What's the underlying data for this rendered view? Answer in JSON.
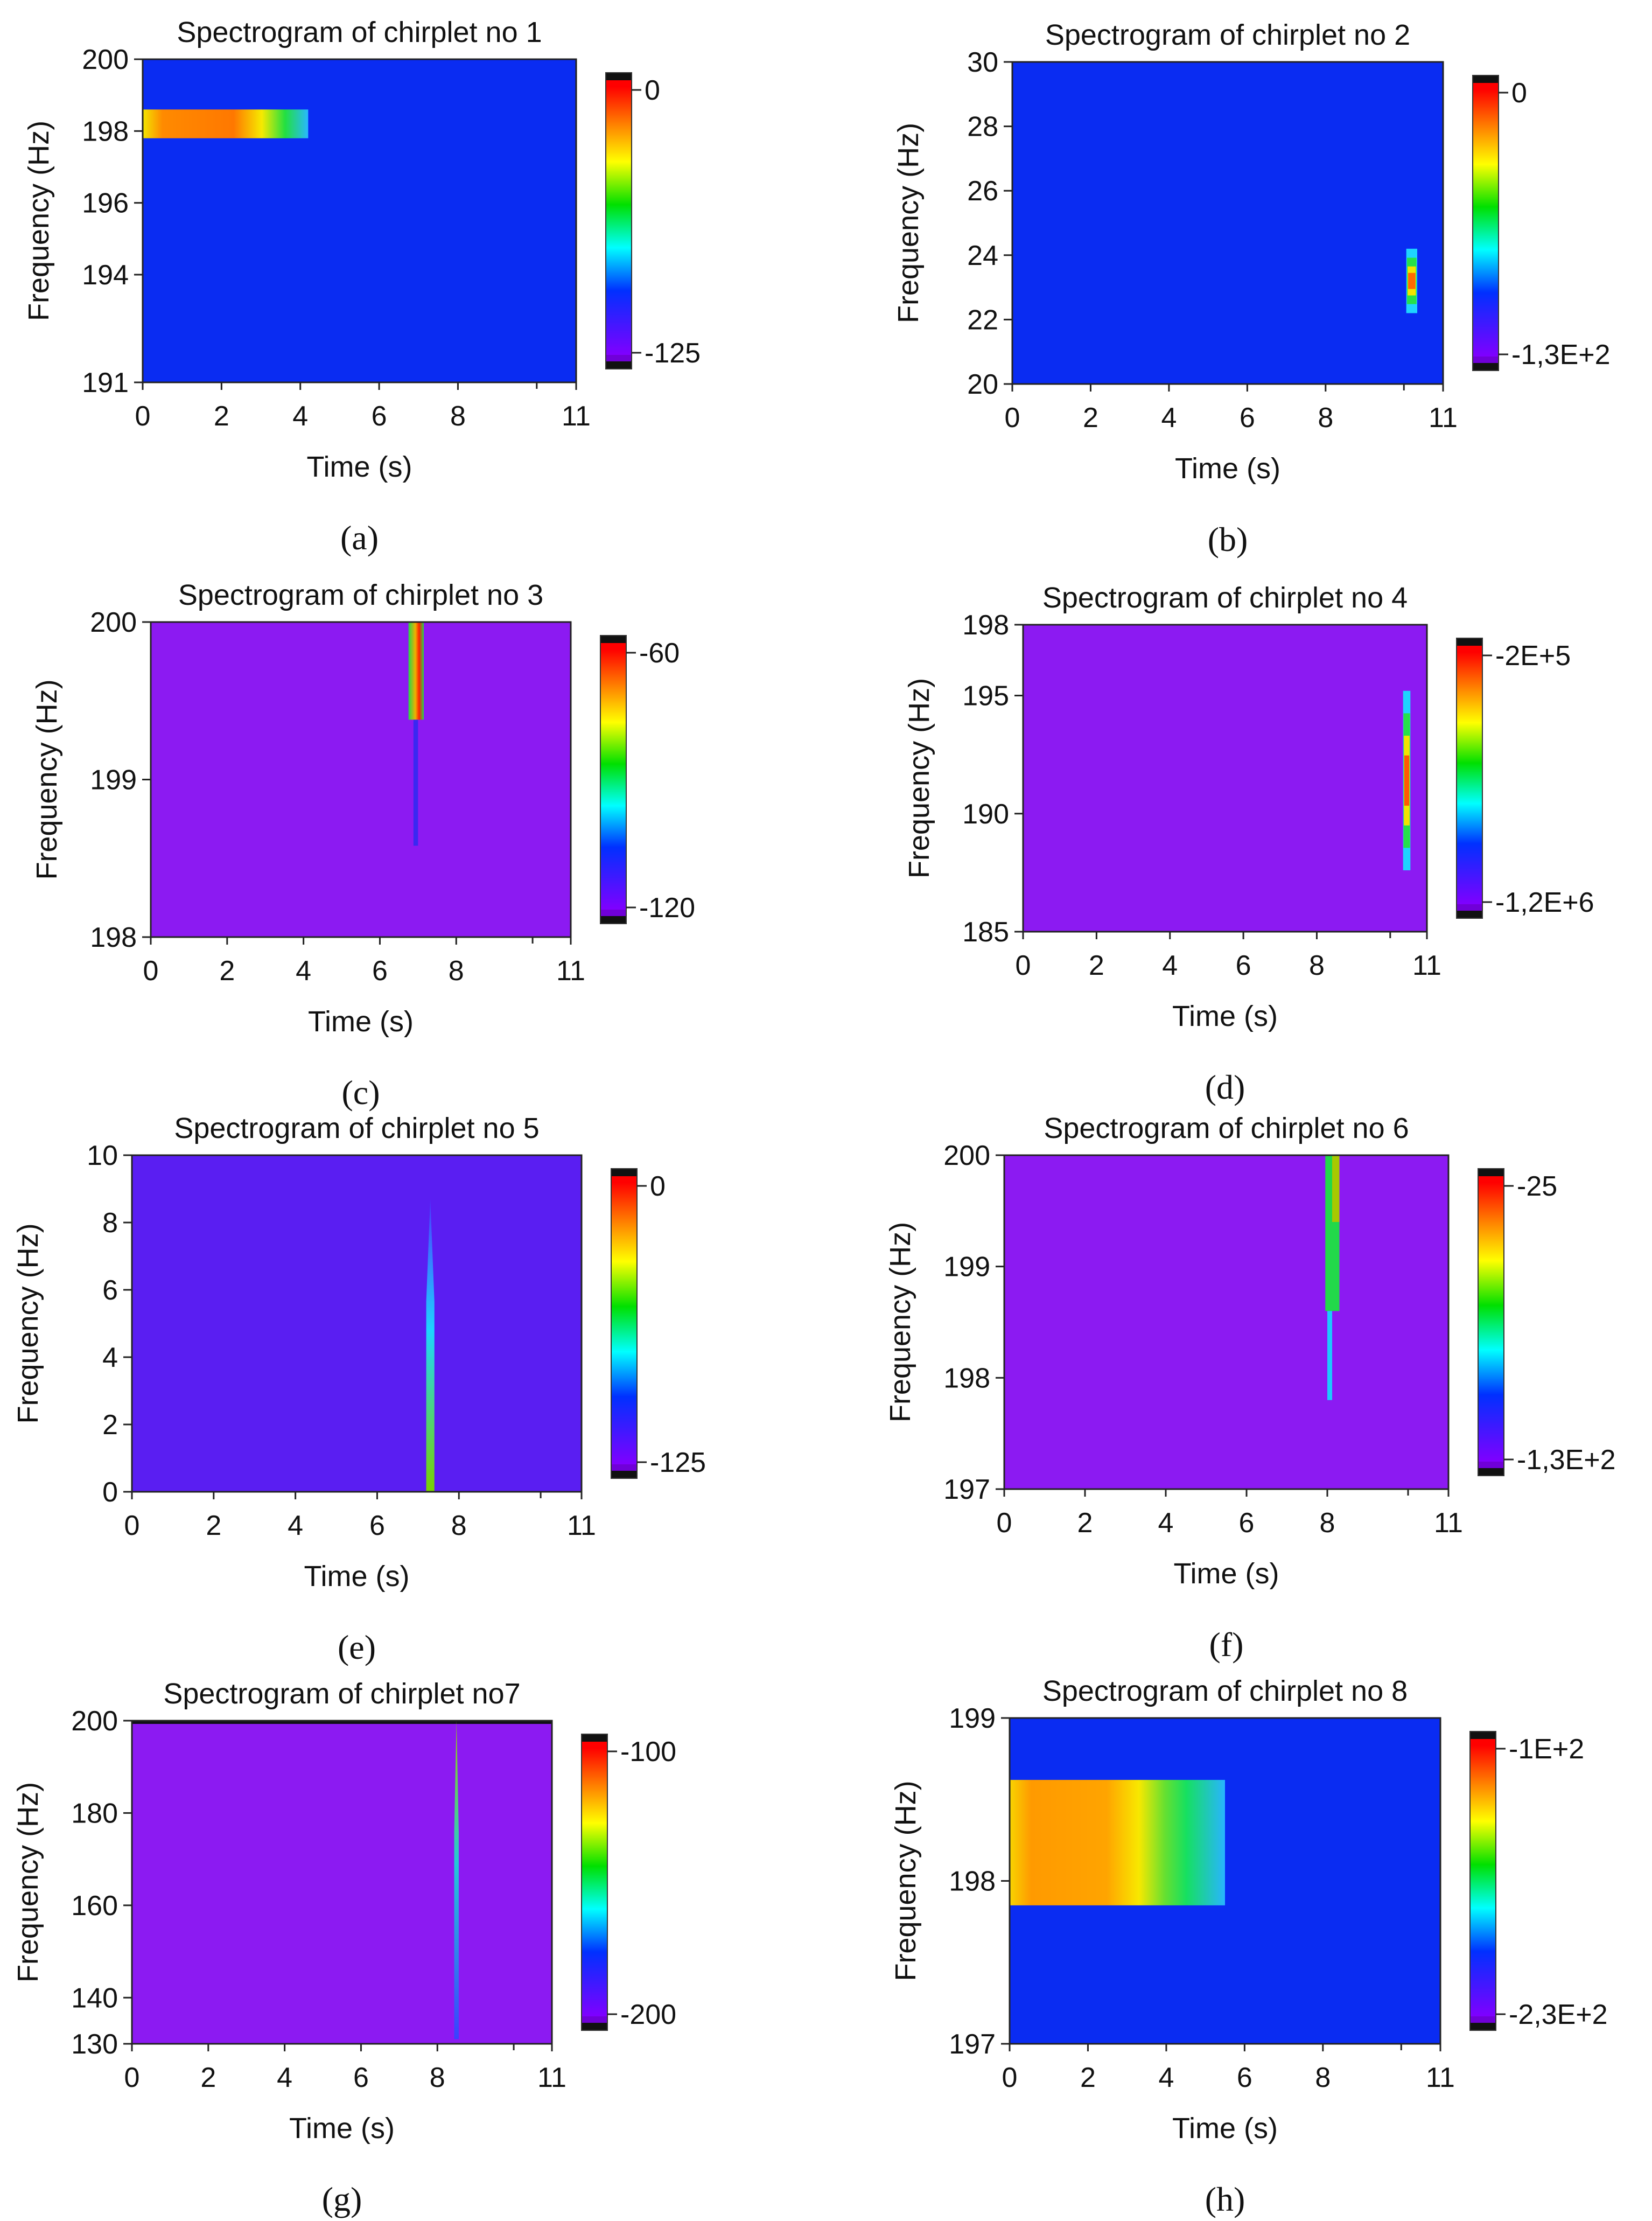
{
  "figure": {
    "background": "#ffffff"
  },
  "chart_data": [
    {
      "panel": "a",
      "panel_label": "(a)",
      "type": "heatmap",
      "title": "Spectrogram of chirplet no 1",
      "xlabel": "Time (s)",
      "ylabel": "Frequency (Hz)",
      "xlim": [
        0,
        11
      ],
      "ylim": [
        191,
        200
      ],
      "xticks": [
        "0",
        "2",
        "4",
        "6",
        "8",
        "11"
      ],
      "xtick_values": [
        0,
        2,
        4,
        6,
        8,
        11
      ],
      "yticks": [
        "191",
        "194",
        "196",
        "198",
        "200"
      ],
      "ytick_values": [
        191,
        194,
        196,
        198,
        200
      ],
      "background_color": "#0a2cf2",
      "colorbar": {
        "max_label": "0",
        "min_label": "-125"
      },
      "features": [
        {
          "shape": "band",
          "t0": 0,
          "t1": 4.2,
          "f0": 197.8,
          "f1": 198.6,
          "stops": [
            [
              0,
              "#f2e600"
            ],
            [
              0.12,
              "#ff8a00"
            ],
            [
              0.55,
              "#ff7800"
            ],
            [
              0.72,
              "#f6ea00"
            ],
            [
              0.86,
              "#23e040"
            ],
            [
              1,
              "#28b8ff"
            ]
          ]
        }
      ]
    },
    {
      "panel": "b",
      "panel_label": "(b)",
      "type": "heatmap",
      "title": "Spectrogram of chirplet no 2",
      "xlabel": "Time (s)",
      "ylabel": "Frequency (Hz)",
      "xlim": [
        0,
        11
      ],
      "ylim": [
        20,
        30
      ],
      "xticks": [
        "0",
        "2",
        "4",
        "6",
        "8",
        "11"
      ],
      "xtick_values": [
        0,
        2,
        4,
        6,
        8,
        11
      ],
      "yticks": [
        "20",
        "22",
        "24",
        "26",
        "28",
        "30"
      ],
      "ytick_values": [
        20,
        22,
        24,
        26,
        28,
        30
      ],
      "background_color": "#0a2cf2",
      "colorbar": {
        "max_label": "0",
        "min_label": "-1,3E+2"
      },
      "features": [
        {
          "shape": "blob",
          "t": 10.2,
          "f": 23.2,
          "dt": 0.28,
          "df": 2.0,
          "layers": [
            [
              1,
              "#1ed4ff"
            ],
            [
              0.72,
              "#27e04a"
            ],
            [
              0.45,
              "#f2e400"
            ],
            [
              0.25,
              "#ff6a00"
            ]
          ]
        }
      ]
    },
    {
      "panel": "c",
      "panel_label": "(c)",
      "type": "heatmap",
      "title": "Spectrogram of chirplet no 3",
      "xlabel": "Time (s)",
      "ylabel": "Frequency (Hz)",
      "xlim": [
        0,
        11
      ],
      "ylim": [
        198,
        200
      ],
      "xticks": [
        "0",
        "2",
        "4",
        "6",
        "8",
        "11"
      ],
      "xtick_values": [
        0,
        2,
        4,
        6,
        8,
        11
      ],
      "yticks": [
        "198",
        "199",
        "200"
      ],
      "ytick_values": [
        198,
        199,
        200
      ],
      "background_color": "#8c1af2",
      "colorbar": {
        "max_label": "-60",
        "min_label": "-120"
      },
      "features": [
        {
          "shape": "band",
          "t0": 6.75,
          "t1": 7.15,
          "f0": 199.38,
          "f1": 200,
          "stops": [
            [
              0,
              "#22d84a"
            ],
            [
              0.45,
              "#f0b000"
            ],
            [
              0.7,
              "#ff2000"
            ],
            [
              1,
              "#22d84a"
            ]
          ]
        },
        {
          "shape": "band",
          "t0": 6.88,
          "t1": 7.0,
          "f0": 198.58,
          "f1": 199.38,
          "stops": [
            [
              0,
              "#3a28f2"
            ],
            [
              1,
              "#3a28f2"
            ]
          ]
        }
      ]
    },
    {
      "panel": "d",
      "panel_label": "(d)",
      "type": "heatmap",
      "title": "Spectrogram of chirplet no 4",
      "xlabel": "Time (s)",
      "ylabel": "Frequency (Hz)",
      "xlim": [
        0,
        11
      ],
      "ylim": [
        185,
        198
      ],
      "xticks": [
        "0",
        "2",
        "4",
        "6",
        "8",
        "11"
      ],
      "xtick_values": [
        0,
        2,
        4,
        6,
        8,
        11
      ],
      "yticks": [
        "185",
        "190",
        "195",
        "198"
      ],
      "ytick_values": [
        185,
        190,
        195,
        198
      ],
      "background_color": "#8c1af2",
      "colorbar": {
        "max_label": "-2E+5",
        "min_label": "-1,2E+6"
      },
      "features": [
        {
          "shape": "blob",
          "t": 10.45,
          "f": 191.4,
          "dt": 0.2,
          "df": 7.6,
          "layers": [
            [
              1,
              "#1ed4ff"
            ],
            [
              0.75,
              "#27e04a"
            ],
            [
              0.5,
              "#f2e400"
            ],
            [
              0.28,
              "#ff5a00"
            ]
          ]
        }
      ]
    },
    {
      "panel": "e",
      "panel_label": "(e)",
      "type": "heatmap",
      "title": "Spectrogram of chirplet no 5",
      "xlabel": "Time (s)",
      "ylabel": "Frequency (Hz)",
      "xlim": [
        0,
        11
      ],
      "ylim": [
        0,
        10
      ],
      "xticks": [
        "0",
        "2",
        "4",
        "6",
        "8",
        "11"
      ],
      "xtick_values": [
        0,
        2,
        4,
        6,
        8,
        11
      ],
      "yticks": [
        "0",
        "2",
        "4",
        "6",
        "8",
        "10"
      ],
      "ytick_values": [
        0,
        2,
        4,
        6,
        8,
        10
      ],
      "background_color": "#5a1ef2",
      "colorbar": {
        "max_label": "0",
        "min_label": "-125"
      },
      "features": [
        {
          "shape": "wedge",
          "t": 7.3,
          "f_top": 8.7,
          "f_bottom": 0,
          "dt": 0.2,
          "color_top": "#4a38ff",
          "color_mid": "#1ed4ff",
          "color_bottom": "#7ad000"
        }
      ]
    },
    {
      "panel": "f",
      "panel_label": "(f)",
      "type": "heatmap",
      "title": "Spectrogram of chirplet no 6",
      "xlabel": "Time (s)",
      "ylabel": "Frequency (Hz)",
      "xlim": [
        0,
        11
      ],
      "ylim": [
        197,
        200
      ],
      "xticks": [
        "0",
        "2",
        "4",
        "6",
        "8",
        "11"
      ],
      "xtick_values": [
        0,
        2,
        4,
        6,
        8,
        11
      ],
      "yticks": [
        "197",
        "198",
        "199",
        "200"
      ],
      "ytick_values": [
        197,
        198,
        199,
        200
      ],
      "background_color": "#8c1af2",
      "colorbar": {
        "max_label": "-25",
        "min_label": "-1,3E+2"
      },
      "features": [
        {
          "shape": "band",
          "t0": 7.95,
          "t1": 8.3,
          "f0": 198.6,
          "f1": 200,
          "stops": [
            [
              0,
              "#22d84a"
            ],
            [
              1,
              "#22d84a"
            ]
          ]
        },
        {
          "shape": "band",
          "t0": 8.12,
          "t1": 8.3,
          "f0": 199.4,
          "f1": 200,
          "stops": [
            [
              0,
              "#a8c800"
            ],
            [
              1,
              "#a8c800"
            ]
          ]
        },
        {
          "shape": "band",
          "t0": 8.0,
          "t1": 8.12,
          "f0": 197.8,
          "f1": 198.6,
          "stops": [
            [
              0,
              "#1ec8ff"
            ],
            [
              1,
              "#1ec8ff"
            ]
          ]
        }
      ]
    },
    {
      "panel": "g",
      "panel_label": "(g)",
      "type": "heatmap",
      "title": "Spectrogram of chirplet no7",
      "xlabel": "Time (s)",
      "ylabel": "Frequency (Hz)",
      "xlim": [
        0,
        11
      ],
      "ylim": [
        130,
        200
      ],
      "xticks": [
        "0",
        "2",
        "4",
        "6",
        "8",
        "11"
      ],
      "xtick_values": [
        0,
        2,
        4,
        6,
        8,
        11
      ],
      "yticks": [
        "130",
        "140",
        "160",
        "180",
        "200"
      ],
      "ytick_values": [
        130,
        140,
        160,
        180,
        200
      ],
      "background_color": "#8c1af2",
      "colorbar": {
        "max_label": "-100",
        "min_label": "-200"
      },
      "features": [
        {
          "shape": "band",
          "t0": 0,
          "t1": 11,
          "f0": 199.3,
          "f1": 200,
          "stops": [
            [
              0,
              "#101018"
            ],
            [
              1,
              "#101018"
            ]
          ]
        },
        {
          "shape": "wedge",
          "t": 8.5,
          "f_top": 200,
          "f_bottom": 131,
          "dt": 0.12,
          "color_top": "#9ad000",
          "color_mid": "#22c8d8",
          "color_bottom": "#3a40ff"
        }
      ]
    },
    {
      "panel": "h",
      "panel_label": "(h)",
      "type": "heatmap",
      "title": "Spectrogram of chirplet no 8",
      "xlabel": "Time (s)",
      "ylabel": "Frequency (Hz)",
      "xlim": [
        0,
        11
      ],
      "ylim": [
        197,
        199
      ],
      "xticks": [
        "0",
        "2",
        "4",
        "6",
        "8",
        "11"
      ],
      "xtick_values": [
        0,
        2,
        4,
        6,
        8,
        11
      ],
      "yticks": [
        "197",
        "198",
        "199"
      ],
      "ytick_values": [
        197,
        198,
        199
      ],
      "background_color": "#0a2cf2",
      "colorbar": {
        "max_label": "-1E+2",
        "min_label": "-2,3E+2"
      },
      "features": [
        {
          "shape": "band",
          "t0": 0,
          "t1": 5.5,
          "f0": 197.85,
          "f1": 198.62,
          "stops": [
            [
              0,
              "#f8d400"
            ],
            [
              0.1,
              "#ff9a00"
            ],
            [
              0.45,
              "#ffa400"
            ],
            [
              0.6,
              "#f8e800"
            ],
            [
              0.72,
              "#66e030"
            ],
            [
              0.82,
              "#16e060"
            ],
            [
              1,
              "#28b4ff"
            ]
          ]
        }
      ]
    }
  ]
}
